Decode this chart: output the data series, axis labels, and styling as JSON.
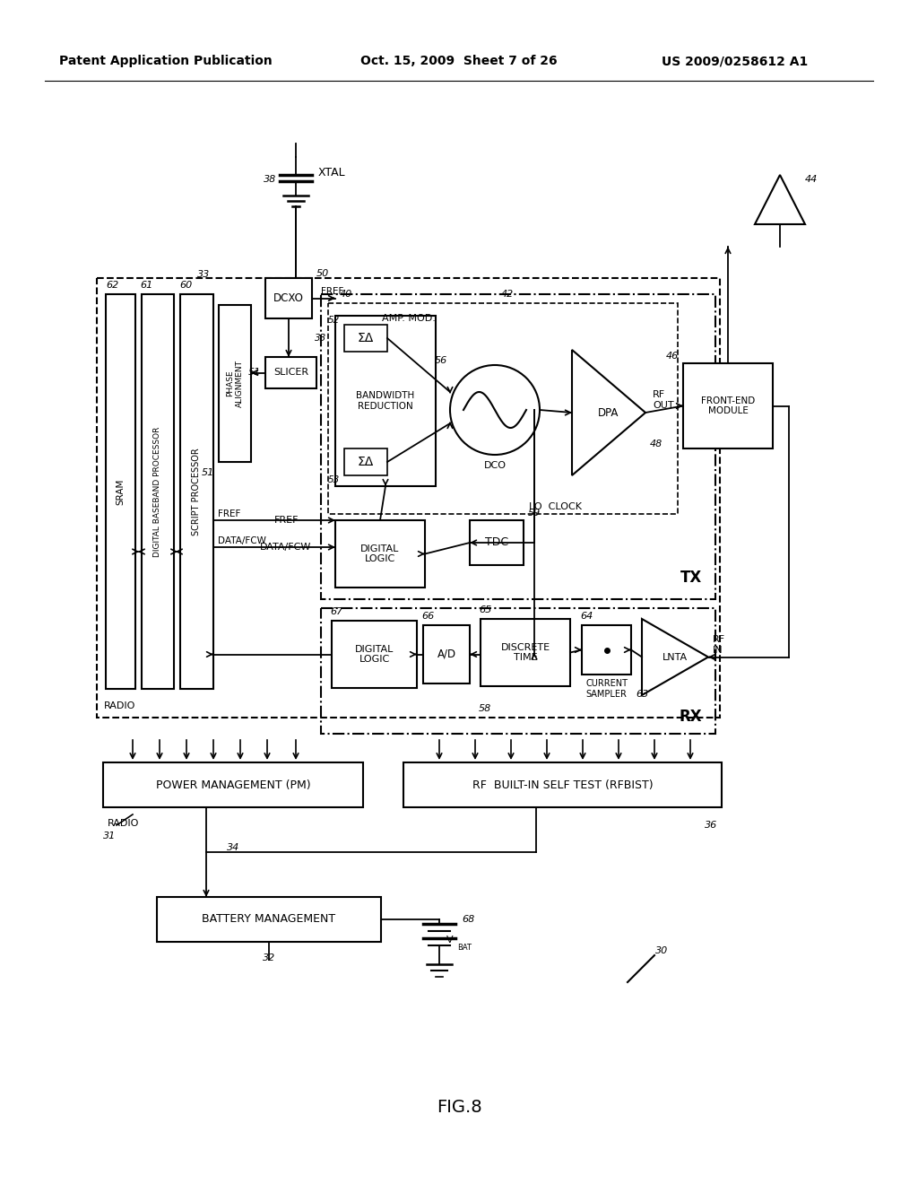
{
  "bg_color": "#ffffff",
  "header_left": "Patent Application Publication",
  "header_center": "Oct. 15, 2009  Sheet 7 of 26",
  "header_right": "US 2009/0258612 A1",
  "fig_label": "FIG.8"
}
